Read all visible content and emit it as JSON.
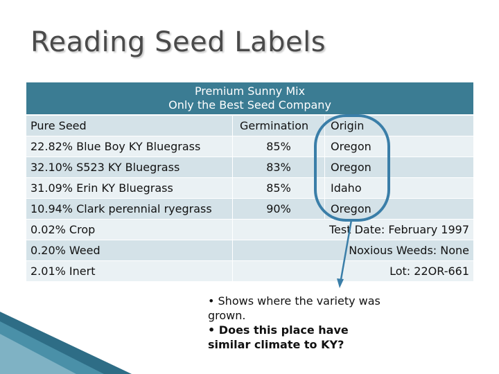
{
  "slide": {
    "title": "Reading Seed Labels"
  },
  "label": {
    "header_line1": "Premium Sunny Mix",
    "header_line2": "Only the Best Seed Company",
    "columns": {
      "pure_seed": "Pure Seed",
      "germination": "Germination",
      "origin": "Origin"
    },
    "varieties": [
      {
        "name": "22.82% Blue Boy KY Bluegrass",
        "germination": "85%",
        "origin": "Oregon"
      },
      {
        "name": "32.10% S523 KY Bluegrass",
        "germination": "83%",
        "origin": "Oregon"
      },
      {
        "name": "31.09% Erin KY Bluegrass",
        "germination": "85%",
        "origin": "Idaho"
      },
      {
        "name": "10.94% Clark perennial ryegrass",
        "germination": "90%",
        "origin": "Oregon"
      }
    ],
    "extras": [
      {
        "left": "0.02% Crop",
        "right": "Test Date: February 1997"
      },
      {
        "left": "0.20% Weed",
        "right": "Noxious Weeds: None"
      },
      {
        "left": "2.01% Inert",
        "right": "Lot: 22OR-661"
      }
    ]
  },
  "callout": {
    "line1": "• Shows where the variety was grown.",
    "line2": "• Does this place have similar climate to KY?"
  },
  "colors": {
    "header": "#3b7c93",
    "row_a": "#d4e2e8",
    "row_b": "#eaf1f4",
    "highlight": "#3a7ea8"
  }
}
